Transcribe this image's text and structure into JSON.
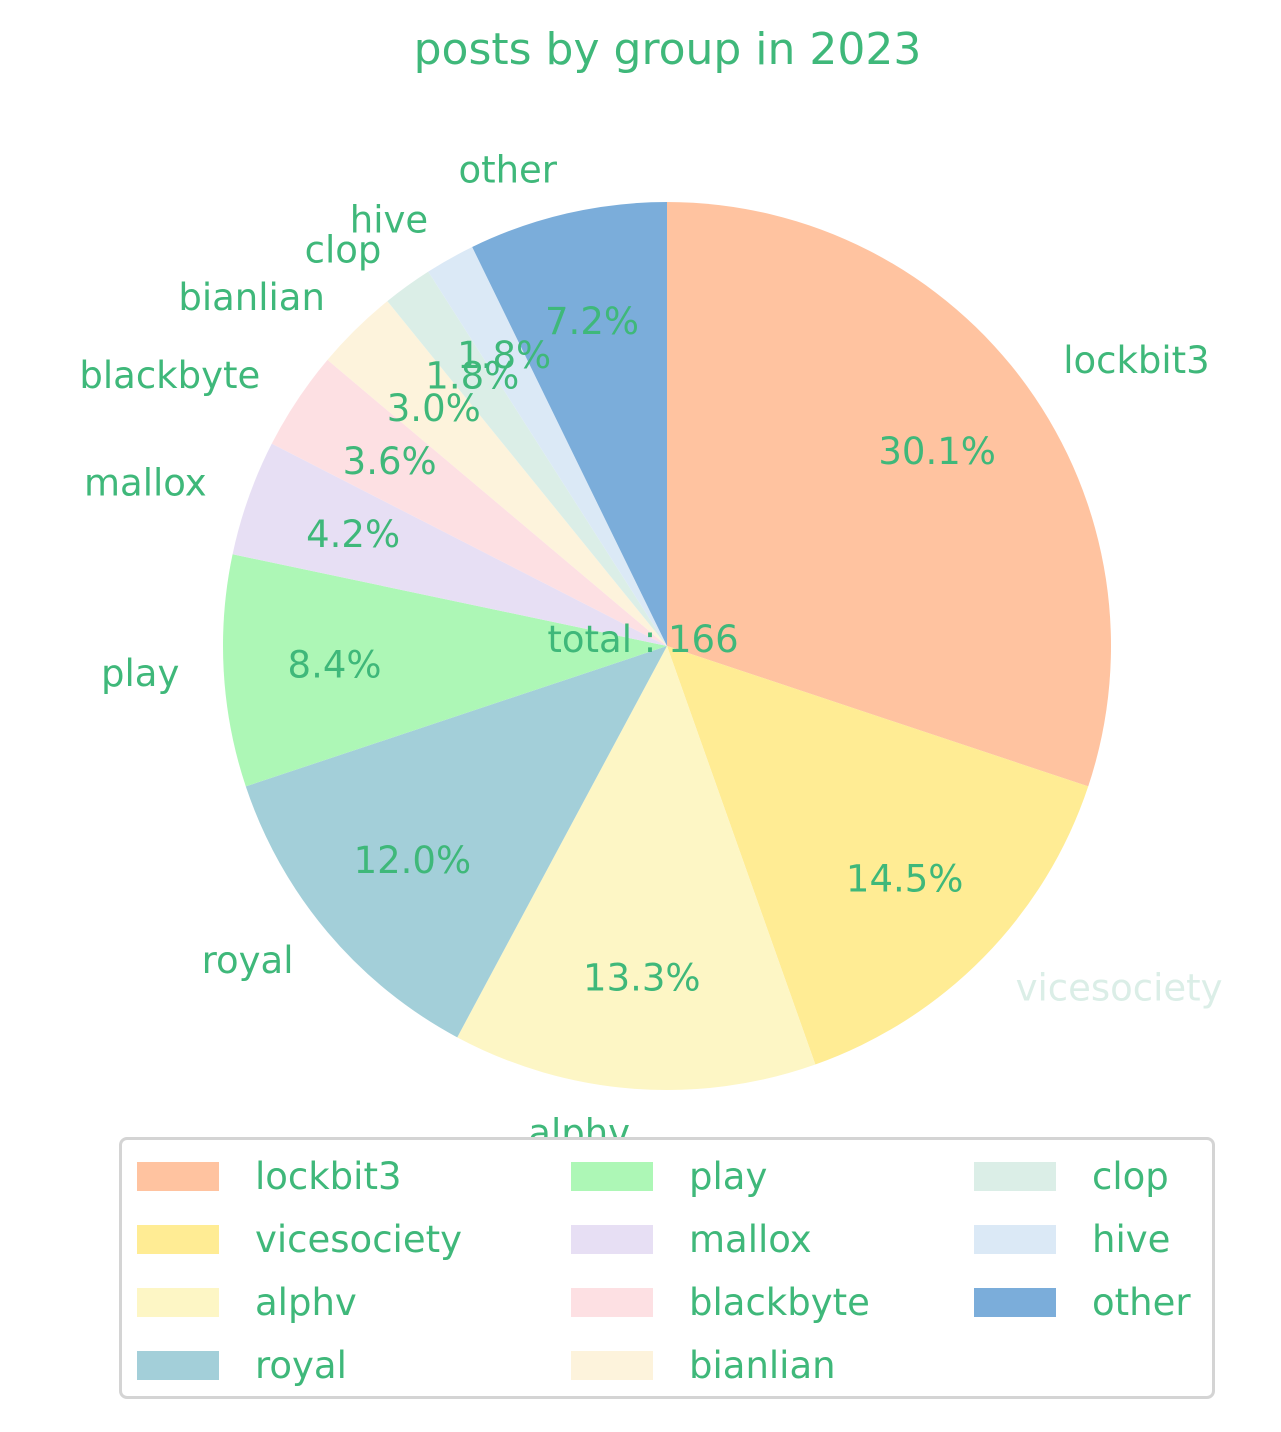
{
  "chart_data": {
    "type": "pie",
    "title": "posts by group in 2023",
    "center_label": "total : 166",
    "total": 166,
    "start_angle_deg": 90,
    "direction": "clockwise",
    "text_color": "#3fb87a",
    "legend": {
      "placement": "bottom",
      "columns": 3
    },
    "slices": [
      {
        "label": "lockbit3",
        "value": 50,
        "pct": "30.1%",
        "color": "#ffc3a0"
      },
      {
        "label": "vicesociety",
        "value": 24,
        "pct": "14.5%",
        "color": "#ffec94"
      },
      {
        "label": "alphv",
        "value": 22,
        "pct": "13.3%",
        "color": "#fdf6c5"
      },
      {
        "label": "royal",
        "value": 20,
        "pct": "12.0%",
        "color": "#a3cfd9"
      },
      {
        "label": "play",
        "value": 14,
        "pct": "8.4%",
        "color": "#adf7b6"
      },
      {
        "label": "mallox",
        "value": 7,
        "pct": "4.2%",
        "color": "#e7dff4"
      },
      {
        "label": "blackbyte",
        "value": 6,
        "pct": "3.6%",
        "color": "#fde0e3"
      },
      {
        "label": "bianlian",
        "value": 5,
        "pct": "3.0%",
        "color": "#fdf3dc"
      },
      {
        "label": "clop",
        "value": 3,
        "pct": "1.8%",
        "color": "#dbeee7"
      },
      {
        "label": "hive",
        "value": 3,
        "pct": "1.8%",
        "color": "#dbe9f6"
      },
      {
        "label": "other",
        "value": 12,
        "pct": "7.2%",
        "color": "#7badda"
      }
    ]
  }
}
